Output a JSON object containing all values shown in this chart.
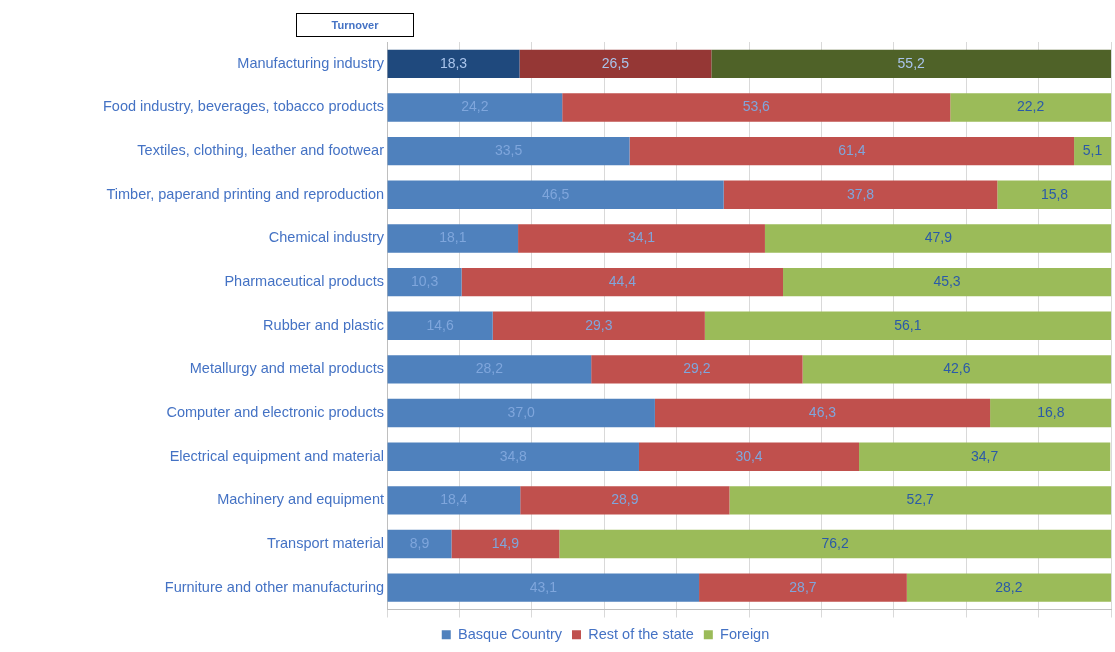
{
  "chart_data": {
    "type": "bar",
    "orientation": "horizontal",
    "stacked": true,
    "title": "Turnover",
    "categories": [
      "Manufacturing industry",
      "Food industry, beverages, tobacco products",
      "Textiles, clothing, leather and footwear",
      "Timber, paperand printing and reproduction",
      "Chemical industry",
      "Pharmaceutical products",
      "Rubber and plastic",
      "Metallurgy and metal products",
      "Computer and electronic products",
      "Electrical equipment and material",
      "Machinery and equipment",
      "Transport material",
      "Furniture and other manufacturing"
    ],
    "series": [
      {
        "name": "Basque Country",
        "color": "#4f81bd",
        "colors": [
          "#1f497d",
          "#4f81bd",
          "#4f81bd",
          "#4f81bd",
          "#4f81bd",
          "#4f81bd",
          "#4f81bd",
          "#4f81bd",
          "#4f81bd",
          "#4f81bd",
          "#4f81bd",
          "#4f81bd",
          "#4f81bd"
        ],
        "values": [
          18.3,
          24.2,
          33.5,
          46.5,
          18.1,
          10.3,
          14.6,
          28.2,
          37.0,
          34.8,
          18.4,
          8.9,
          43.1
        ],
        "value_labels": [
          "18,3",
          "24,2",
          "33,5",
          "46,5",
          "18,1",
          "10,3",
          "14,6",
          "28,2",
          "37,0",
          "34,8",
          "18,4",
          "8,9",
          "43,1"
        ]
      },
      {
        "name": "Rest of the state",
        "color": "#c0504d",
        "colors": [
          "#953735",
          "#c0504d",
          "#c0504d",
          "#c0504d",
          "#c0504d",
          "#c0504d",
          "#c0504d",
          "#c0504d",
          "#c0504d",
          "#c0504d",
          "#c0504d",
          "#c0504d",
          "#c0504d"
        ],
        "values": [
          26.5,
          53.6,
          61.4,
          37.8,
          34.1,
          44.4,
          29.3,
          29.2,
          46.3,
          30.4,
          28.9,
          14.9,
          28.7
        ],
        "value_labels": [
          "26,5",
          "53,6",
          "61,4",
          "37,8",
          "34,1",
          "44,4",
          "29,3",
          "29,2",
          "46,3",
          "30,4",
          "28,9",
          "14,9",
          "28,7"
        ]
      },
      {
        "name": "Foreign",
        "color": "#9bbb59",
        "colors": [
          "#4f6228",
          "#9bbb59",
          "#9bbb59",
          "#9bbb59",
          "#9bbb59",
          "#9bbb59",
          "#9bbb59",
          "#9bbb59",
          "#9bbb59",
          "#9bbb59",
          "#9bbb59",
          "#9bbb59",
          "#9bbb59"
        ],
        "values": [
          55.2,
          22.2,
          5.1,
          15.8,
          47.9,
          45.3,
          56.1,
          42.6,
          16.8,
          34.7,
          52.7,
          76.2,
          28.2
        ],
        "value_labels": [
          "55,2",
          "22,2",
          "5,1",
          "15,8",
          "47,9",
          "45,3",
          "56,1",
          "42,6",
          "16,8",
          "34,7",
          "52,7",
          "76,2",
          "28,2"
        ]
      }
    ],
    "xlim": [
      0,
      100
    ],
    "xticks": [
      {
        "value": 0,
        "label": null
      },
      {
        "value": 10,
        "label": null
      },
      {
        "value": 20,
        "label": null
      },
      {
        "value": 30,
        "label": null
      },
      {
        "value": 40,
        "label": null
      },
      {
        "value": 50,
        "label": null
      },
      {
        "value": 60,
        "label": null
      },
      {
        "value": 70,
        "label": null
      },
      {
        "value": 80,
        "label": null
      },
      {
        "value": 90,
        "label": null
      },
      {
        "value": 100,
        "label": null
      }
    ],
    "grid": "x",
    "legend": "bottom",
    "tick_labels": "y"
  }
}
